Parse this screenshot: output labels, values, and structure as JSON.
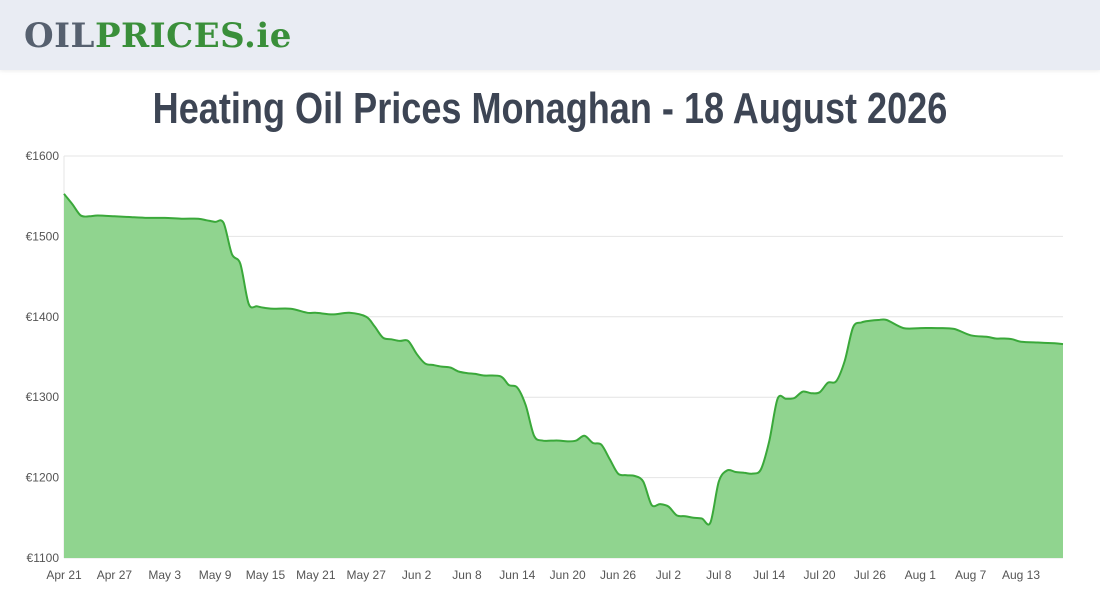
{
  "header": {
    "logo_part1": "OIL",
    "logo_part2": "PRICES.ie"
  },
  "page_title": "Heating Oil Prices Monaghan - 18 August 2026",
  "chart_data": {
    "type": "area",
    "title": "Heating Oil Prices Monaghan - 18 August 2026",
    "xlabel": "",
    "ylabel": "",
    "ylim": [
      1100,
      1600
    ],
    "y_ticks": [
      "€1600",
      "€1500",
      "€1400",
      "€1300",
      "€1200",
      "€1100"
    ],
    "y_tick_values": [
      1600,
      1500,
      1400,
      1300,
      1200,
      1100
    ],
    "x_ticks": [
      "Apr 21",
      "Apr 27",
      "May 3",
      "May 9",
      "May 15",
      "May 21",
      "May 27",
      "Jun 2",
      "Jun 8",
      "Jun 14",
      "Jun 20",
      "Jun 26",
      "Jul 2",
      "Jul 8",
      "Jul 14",
      "Jul 20",
      "Jul 26",
      "Aug 1",
      "Aug 7",
      "Aug 13"
    ],
    "x_tick_days": [
      0,
      6,
      12,
      18,
      24,
      30,
      36,
      42,
      48,
      54,
      60,
      66,
      72,
      78,
      84,
      90,
      96,
      102,
      108,
      114
    ],
    "x_range_days": [
      0,
      119
    ],
    "fill_color": "#90d48f",
    "line_color": "#3aa83a",
    "grid": true,
    "series": [
      {
        "x": [
          0,
          1,
          2,
          3,
          4,
          6,
          8,
          10,
          12,
          14,
          16,
          17,
          18,
          19,
          20,
          21,
          22,
          23,
          24,
          25,
          27,
          29,
          30,
          32,
          34,
          36,
          37,
          38,
          39,
          40,
          41,
          42,
          43,
          44,
          45,
          46,
          47,
          48,
          49,
          50,
          52,
          53,
          54,
          55,
          56,
          57,
          58,
          59,
          60,
          61,
          62,
          63,
          64,
          65,
          66,
          67,
          68,
          69,
          70,
          71,
          72,
          73,
          74,
          75,
          76,
          77,
          78,
          79,
          80,
          81,
          82,
          83,
          84,
          85,
          86,
          87,
          88,
          89,
          90,
          91,
          92,
          93,
          94,
          95,
          96,
          97,
          98,
          100,
          102,
          104,
          106,
          108,
          110,
          111,
          112,
          113,
          114,
          116,
          118,
          119
        ],
        "y": [
          1553,
          1540,
          1526,
          1525,
          1526,
          1525,
          1524,
          1523,
          1523,
          1522,
          1522,
          1520,
          1518,
          1517,
          1478,
          1466,
          1416,
          1413,
          1411,
          1410,
          1410,
          1405,
          1405,
          1403,
          1405,
          1400,
          1388,
          1374,
          1372,
          1370,
          1370,
          1354,
          1342,
          1340,
          1338,
          1337,
          1332,
          1330,
          1329,
          1327,
          1326,
          1315,
          1312,
          1290,
          1252,
          1246,
          1246,
          1246,
          1245,
          1246,
          1252,
          1243,
          1241,
          1223,
          1205,
          1203,
          1202,
          1195,
          1166,
          1167,
          1164,
          1153,
          1152,
          1150,
          1149,
          1144,
          1195,
          1209,
          1207,
          1206,
          1205,
          1210,
          1245,
          1298,
          1298,
          1299,
          1307,
          1305,
          1306,
          1318,
          1320,
          1345,
          1387,
          1393,
          1395,
          1396,
          1396,
          1386,
          1386,
          1386,
          1385,
          1377,
          1375,
          1373,
          1373,
          1372,
          1369,
          1368,
          1367,
          1366
        ]
      }
    ]
  }
}
